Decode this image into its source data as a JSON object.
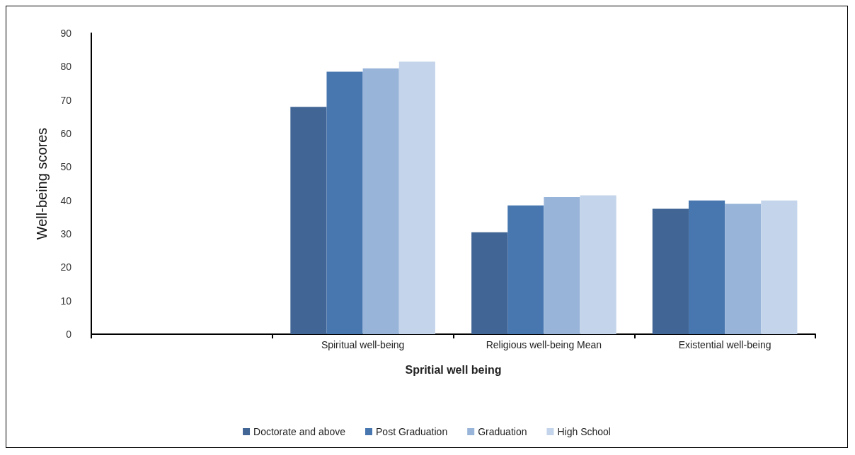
{
  "chart_data": {
    "type": "bar",
    "xlabel": "Spritial well being",
    "ylabel": "Well-being scores",
    "categories": [
      null,
      "Spiritual well-being",
      "Religious well-being Mean",
      "Existential well-being"
    ],
    "series": [
      {
        "name": "Doctorate and above",
        "color": "#416594",
        "values": [
          null,
          68,
          30.5,
          37.5
        ]
      },
      {
        "name": "Post Graduation",
        "color": "#4877b0",
        "values": [
          null,
          78.5,
          38.5,
          40
        ]
      },
      {
        "name": "Graduation",
        "color": "#98b5d9",
        "values": [
          null,
          79.5,
          41,
          39
        ]
      },
      {
        "name": "High School",
        "color": "#c4d4ea",
        "values": [
          null,
          81.5,
          41.5,
          40
        ]
      }
    ],
    "ylim": [
      0,
      90
    ],
    "yticks": [
      0,
      10,
      20,
      30,
      40,
      50,
      60,
      70,
      80,
      90
    ],
    "grid": false,
    "legend": "bottom"
  }
}
